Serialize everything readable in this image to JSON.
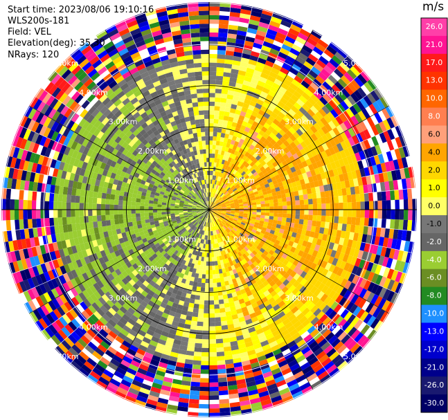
{
  "header": {
    "start_time": "Start time: 2023/08/06 19:10:16",
    "instrument": "WLS200s-181",
    "field": "Field: VEL",
    "elevation": "Elevation(deg): 35.30",
    "nrays": "NRays: 120"
  },
  "chart_data": {
    "type": "heatmap",
    "projection": "polar-ppi",
    "field": "VEL",
    "units": "m/s",
    "nrays": 120,
    "elevation_deg": 35.3,
    "range_rings": [
      "1.00km",
      "2.00km",
      "3.00km",
      "4.00km",
      "5.00km"
    ],
    "max_range_km": 5.0,
    "colorbar": {
      "label": "m/s",
      "ticks": [
        "26.0",
        "21.0",
        "17.0",
        "13.0",
        "10.0",
        "8.0",
        "6.0",
        "4.0",
        "2.0",
        "1.0",
        "0.0",
        "-1.0",
        "-2.0",
        "-4.0",
        "-6.0",
        "-8.0",
        "-10.0",
        "-13.0",
        "-17.0",
        "-21.0",
        "-26.0",
        "-30.0"
      ],
      "colors": [
        "#ff3fa8",
        "#ff1493",
        "#ff1a1a",
        "#ff3300",
        "#ff6600",
        "#ff7f50",
        "#ffa07a",
        "#ffa500",
        "#ffd700",
        "#ffff00",
        "#ffff66",
        "#777777",
        "#666666",
        "#9acd32",
        "#6b8e23",
        "#228b22",
        "#1e90ff",
        "#0000ff",
        "#0000cd",
        "#00008b",
        "#191970",
        "#000066"
      ]
    },
    "pattern": {
      "inner_west": "green (-2 to -6 m/s, approaching)",
      "inner_east": "yellow/orange (+1 to +6 m/s, receding)",
      "outer_ring": "noisy random velocities beyond ~3.8 km"
    }
  }
}
